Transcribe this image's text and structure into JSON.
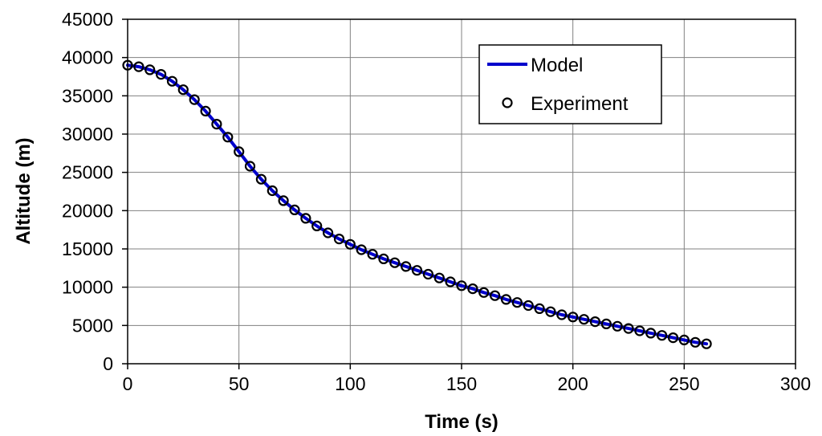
{
  "chart_data": {
    "type": "line",
    "title": "",
    "xlabel": "Time (s)",
    "ylabel": "Altitude (m)",
    "xlim": [
      0,
      300
    ],
    "ylim": [
      0,
      45000
    ],
    "xticks": [
      0,
      50,
      100,
      150,
      200,
      250,
      300
    ],
    "yticks": [
      0,
      5000,
      10000,
      15000,
      20000,
      25000,
      30000,
      35000,
      40000,
      45000
    ],
    "grid": true,
    "legend_position": "top-right",
    "series": [
      {
        "name": "Model",
        "style": "line",
        "color": "#0000cc",
        "x": [
          0,
          5,
          10,
          15,
          20,
          25,
          30,
          35,
          40,
          45,
          50,
          55,
          60,
          65,
          70,
          75,
          80,
          85,
          90,
          95,
          100,
          105,
          110,
          115,
          120,
          125,
          130,
          135,
          140,
          145,
          150,
          155,
          160,
          165,
          170,
          175,
          180,
          185,
          190,
          195,
          200,
          205,
          210,
          215,
          220,
          225,
          230,
          235,
          240,
          245,
          250,
          255,
          260
        ],
        "y": [
          39000,
          38800,
          38400,
          37800,
          36900,
          35800,
          34500,
          33000,
          31300,
          29600,
          27700,
          25800,
          24100,
          22600,
          21300,
          20100,
          19000,
          18000,
          17100,
          16300,
          15600,
          14900,
          14300,
          13700,
          13200,
          12700,
          12200,
          11700,
          11200,
          10700,
          10200,
          9800,
          9300,
          8900,
          8400,
          8000,
          7600,
          7200,
          6800,
          6400,
          6100,
          5800,
          5500,
          5200,
          4900,
          4600,
          4300,
          4000,
          3700,
          3400,
          3100,
          2800,
          2600
        ]
      },
      {
        "name": "Experiment",
        "style": "markers",
        "color": "#000000",
        "x": [
          0,
          5,
          10,
          15,
          20,
          25,
          30,
          35,
          40,
          45,
          50,
          55,
          60,
          65,
          70,
          75,
          80,
          85,
          90,
          95,
          100,
          105,
          110,
          115,
          120,
          125,
          130,
          135,
          140,
          145,
          150,
          155,
          160,
          165,
          170,
          175,
          180,
          185,
          190,
          195,
          200,
          205,
          210,
          215,
          220,
          225,
          230,
          235,
          240,
          245,
          250,
          255,
          260
        ],
        "y": [
          39000,
          38800,
          38400,
          37800,
          36900,
          35800,
          34500,
          33000,
          31300,
          29600,
          27700,
          25800,
          24100,
          22600,
          21300,
          20100,
          19000,
          18000,
          17100,
          16300,
          15600,
          14900,
          14300,
          13700,
          13200,
          12700,
          12200,
          11700,
          11200,
          10700,
          10200,
          9800,
          9300,
          8900,
          8400,
          8000,
          7600,
          7200,
          6800,
          6400,
          6100,
          5800,
          5500,
          5200,
          4900,
          4600,
          4300,
          4000,
          3700,
          3400,
          3100,
          2800,
          2600
        ]
      }
    ]
  }
}
